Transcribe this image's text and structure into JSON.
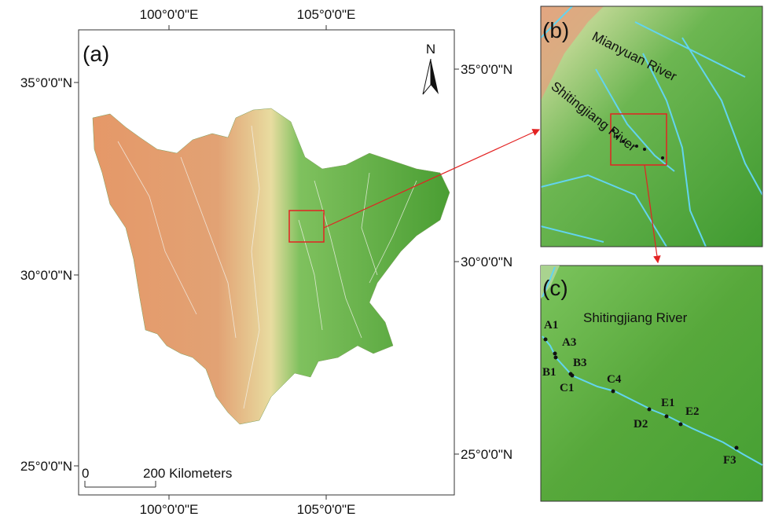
{
  "panel_a": {
    "label": "(a)",
    "top_labels": [
      "100°0'0\"E",
      "105°0'0\"E"
    ],
    "bottom_labels": [
      "100°0'0\"E",
      "105°0'0\"E"
    ],
    "left_labels": [
      "35°0'0\"N",
      "30°0'0\"N",
      "25°0'0\"N"
    ],
    "right_labels": [
      "35°0'0\"N",
      "30°0'0\"N",
      "25°0'0\"N"
    ],
    "north": "N",
    "scale_start": "0",
    "scale_end": "200 Kilometers"
  },
  "panel_b": {
    "label": "(b)",
    "river_1": "Mianyuan River",
    "river_2": "Shitingjiang River"
  },
  "panel_c": {
    "label": "(c)",
    "river": "Shitingjiang River",
    "sites": [
      "A1",
      "A3",
      "B1",
      "B3",
      "C1",
      "C4",
      "D2",
      "E1",
      "E2",
      "F3"
    ]
  }
}
